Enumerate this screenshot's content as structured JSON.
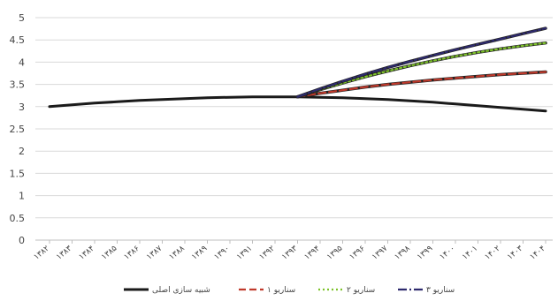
{
  "chart_data": {
    "type": "line",
    "title": "",
    "xlabel": "",
    "ylabel": "",
    "ylim": [
      0,
      5
    ],
    "yticks": [
      "0",
      "0.5",
      "1",
      "1.5",
      "2",
      "2.5",
      "3",
      "3.5",
      "4",
      "4.5",
      "5"
    ],
    "grid": "horizontal",
    "legend_position": "bottom",
    "categories": [
      "۱۳۸۲",
      "۱۳۸۳",
      "۱۳۸۴",
      "۱۳۸۵",
      "۱۳۸۶",
      "۱۳۸۷",
      "۱۳۸۸",
      "۱۳۸۹",
      "۱۳۹۰",
      "۱۳۹۱",
      "۱۳۹۲",
      "۱۳۹۳",
      "۱۳۹۴",
      "۱۳۹۵",
      "۱۳۹۶",
      "۱۳۹۷",
      "۱۳۹۸",
      "۱۳۹۹",
      "۱۴۰۰",
      "۱۴۰۱",
      "۱۴۰۲",
      "۱۴۰۳",
      "۱۴۰۴"
    ],
    "series": [
      {
        "name": "شبیه سازی اصلی",
        "color": "#1a1a1a",
        "dash": "solid",
        "values": [
          3.0,
          3.04,
          3.08,
          3.11,
          3.14,
          3.16,
          3.18,
          3.2,
          3.21,
          3.22,
          3.22,
          3.22,
          3.21,
          3.2,
          3.18,
          3.16,
          3.13,
          3.1,
          3.06,
          3.02,
          2.98,
          2.94,
          2.9
        ]
      },
      {
        "name": "سناریو ۱",
        "color": "#c0392b",
        "dash": "dashed",
        "values": [
          null,
          null,
          null,
          null,
          null,
          null,
          null,
          null,
          null,
          null,
          null,
          3.22,
          3.3,
          3.37,
          3.44,
          3.5,
          3.55,
          3.6,
          3.64,
          3.68,
          3.72,
          3.75,
          3.78
        ]
      },
      {
        "name": "سناریو ۲",
        "color": "#7dc22a",
        "dash": "dotted",
        "values": [
          null,
          null,
          null,
          null,
          null,
          null,
          null,
          null,
          null,
          null,
          null,
          3.22,
          3.38,
          3.53,
          3.67,
          3.8,
          3.92,
          4.03,
          4.13,
          4.22,
          4.3,
          4.37,
          4.43
        ]
      },
      {
        "name": "سناریو ۳",
        "color": "#2e2a6e",
        "dash": "dashdot",
        "values": [
          null,
          null,
          null,
          null,
          null,
          null,
          null,
          null,
          null,
          null,
          null,
          3.22,
          3.4,
          3.57,
          3.73,
          3.88,
          4.02,
          4.15,
          4.28,
          4.4,
          4.52,
          4.64,
          4.76
        ]
      }
    ]
  }
}
